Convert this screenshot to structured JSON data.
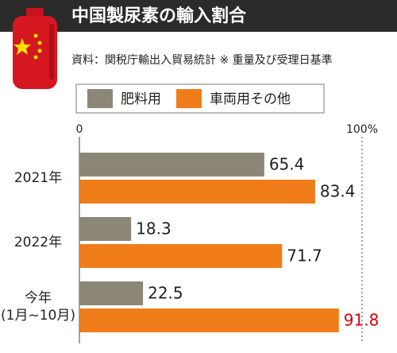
{
  "title": "中国製尿素の輸入割合",
  "source": "資料：関税庁輸出入貿易統計 ※ 重量及び受理日基準",
  "chart_data": {
    "type": "bar",
    "orientation": "horizontal",
    "categories": [
      "2021年",
      "2022年",
      "今年\n(1月~10月)"
    ],
    "series": [
      {
        "name": "肥料用",
        "color": "#8c8677",
        "values": [
          65.4,
          18.3,
          22.5
        ]
      },
      {
        "name": "車両用その他",
        "color": "#f07d1a",
        "values": [
          83.4,
          71.7,
          91.8
        ]
      }
    ],
    "xlim": [
      0,
      100
    ],
    "xticks": [
      0,
      {
        "value": 100,
        "label": "100%"
      }
    ],
    "highlight": {
      "series": 1,
      "index": 2,
      "color": "#d7000f"
    }
  }
}
